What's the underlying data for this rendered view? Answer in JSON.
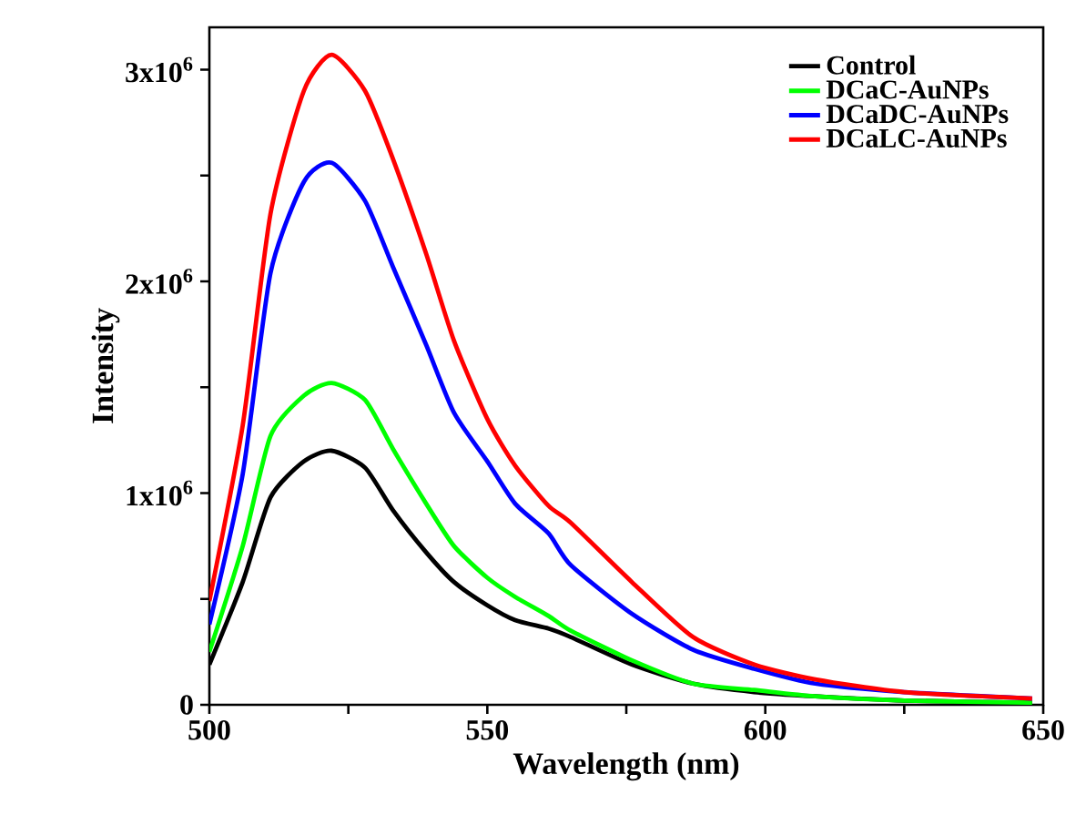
{
  "chart_data": {
    "type": "line",
    "xlabel": "Wavelength (nm)",
    "ylabel": "Intensity",
    "x": [
      500,
      506,
      511,
      517,
      522,
      528,
      533,
      539,
      544,
      550,
      555,
      561,
      565,
      576,
      587,
      598,
      609,
      625,
      648
    ],
    "series": [
      {
        "name": "Control",
        "color": "#000000",
        "values": [
          190000,
          580000,
          980000,
          1150000,
          1200000,
          1120000,
          920000,
          720000,
          580000,
          470000,
          400000,
          360000,
          320000,
          190000,
          100000,
          60000,
          40000,
          20000,
          10000
        ]
      },
      {
        "name": "DCaC-AuNPs",
        "color": "#00ff00",
        "values": [
          250000,
          750000,
          1270000,
          1460000,
          1520000,
          1440000,
          1210000,
          950000,
          750000,
          600000,
          510000,
          420000,
          350000,
          210000,
          100000,
          70000,
          40000,
          20000,
          10000
        ]
      },
      {
        "name": "DCaDC-AuNPs",
        "color": "#0000ff",
        "values": [
          380000,
          1090000,
          2040000,
          2470000,
          2560000,
          2380000,
          2070000,
          1700000,
          1380000,
          1150000,
          950000,
          810000,
          660000,
          430000,
          260000,
          170000,
          100000,
          60000,
          30000
        ]
      },
      {
        "name": "DCaLC-AuNPs",
        "color": "#ff0000",
        "values": [
          490000,
          1320000,
          2320000,
          2900000,
          3070000,
          2900000,
          2580000,
          2130000,
          1720000,
          1350000,
          1130000,
          940000,
          860000,
          580000,
          320000,
          190000,
          120000,
          60000,
          30000
        ]
      }
    ],
    "xlim": [
      500,
      650
    ],
    "ylim": [
      0,
      3200000
    ],
    "xticks": [
      500,
      {
        "value": 525,
        "label": null
      },
      550,
      {
        "value": 575,
        "label": null
      },
      600,
      {
        "value": 625,
        "label": null
      },
      650
    ],
    "yticks": [
      0,
      {
        "value": 500000,
        "label": null
      },
      {
        "value": 1000000,
        "label": "1x10$^{6}$"
      },
      {
        "value": 1500000,
        "label": null
      },
      {
        "value": 2000000,
        "label": "2x10$^{6}$"
      },
      {
        "value": 2500000,
        "label": null
      },
      {
        "value": 3000000,
        "label": "3x10$^{6}$"
      }
    ],
    "grid": false,
    "legend": "top right",
    "marker": "none",
    "line_style": "solid"
  }
}
